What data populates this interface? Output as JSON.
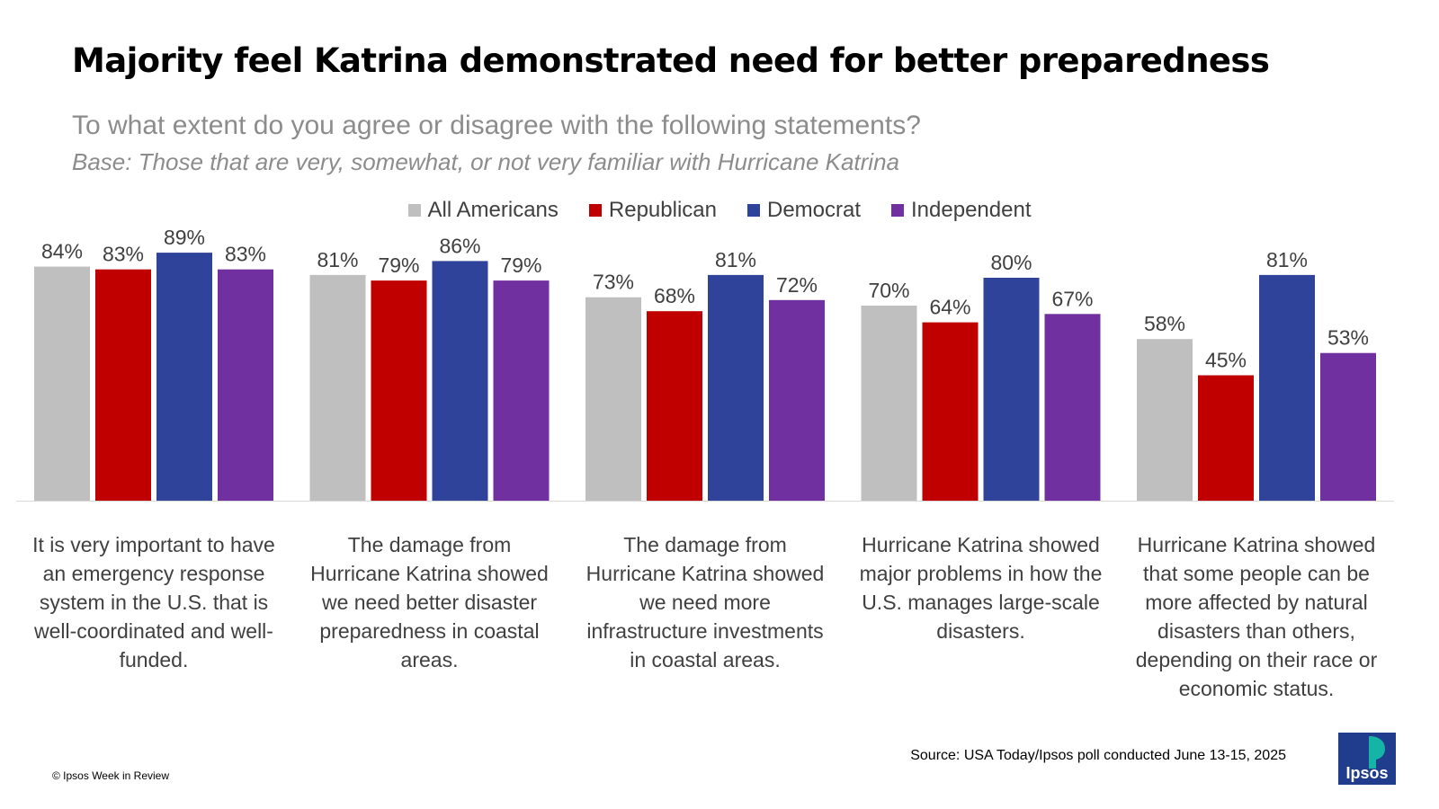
{
  "header": {
    "title": "Majority feel Katrina demonstrated need for better preparedness",
    "subtitle": "To what extent do you agree or disagree with the following statements?",
    "base": "Base: Those that are very, somewhat, or not very familiar with Hurricane Katrina"
  },
  "footer": {
    "source": "Source: USA Today/Ipsos poll conducted June 13-15, 2025",
    "copyright": "© Ipsos Week in Review",
    "logo_text": "Ipsos"
  },
  "colors": {
    "all_americans": "#bfbfbf",
    "republican": "#c00000",
    "democrat": "#2e4399",
    "independent": "#7030a0",
    "logo_bg": "#1f3d8c",
    "logo_accent": "#15b4a6"
  },
  "chart_data": {
    "type": "bar",
    "title": "Majority feel Katrina demonstrated need for better preparedness",
    "categories": [
      "It is very important to have an emergency response system in the U.S. that is well-coordinated and well-funded.",
      "The damage from Hurricane Katrina showed we need better disaster preparedness in coastal areas.",
      "The damage from Hurricane Katrina showed we need more infrastructure investments in coastal areas.",
      "Hurricane Katrina showed major problems in how the U.S. manages large-scale disasters.",
      "Hurricane Katrina showed that some people can be more affected by natural disasters than others, depending on their race or economic status."
    ],
    "category_lines": [
      [
        "It is very important to have",
        "an emergency response",
        "system in the U.S. that is",
        "well-coordinated and well-",
        "funded."
      ],
      [
        "The damage from",
        "Hurricane Katrina showed",
        "we need better disaster",
        "preparedness in coastal",
        "areas."
      ],
      [
        "The damage from",
        "Hurricane Katrina showed",
        "we need more",
        "infrastructure investments",
        "in coastal areas."
      ],
      [
        "Hurricane Katrina showed",
        "major problems in how the",
        "U.S. manages large-scale",
        "disasters."
      ],
      [
        "Hurricane Katrina showed",
        "that some people can be",
        "more affected by natural",
        "disasters than others,",
        "depending on their race or",
        "economic status."
      ]
    ],
    "series": [
      {
        "name": "All Americans",
        "values": [
          84,
          81,
          73,
          70,
          58
        ],
        "color": "#bfbfbf"
      },
      {
        "name": "Republican",
        "values": [
          83,
          79,
          68,
          64,
          45
        ],
        "color": "#c00000"
      },
      {
        "name": "Democrat",
        "values": [
          89,
          86,
          81,
          80,
          81
        ],
        "color": "#2e4399"
      },
      {
        "name": "Independent",
        "values": [
          83,
          79,
          72,
          67,
          53
        ],
        "color": "#7030a0"
      }
    ],
    "value_suffix": "%",
    "ylim": [
      0,
      100
    ],
    "grid": false,
    "legend_position": "top",
    "xlabel": "",
    "ylabel": ""
  }
}
